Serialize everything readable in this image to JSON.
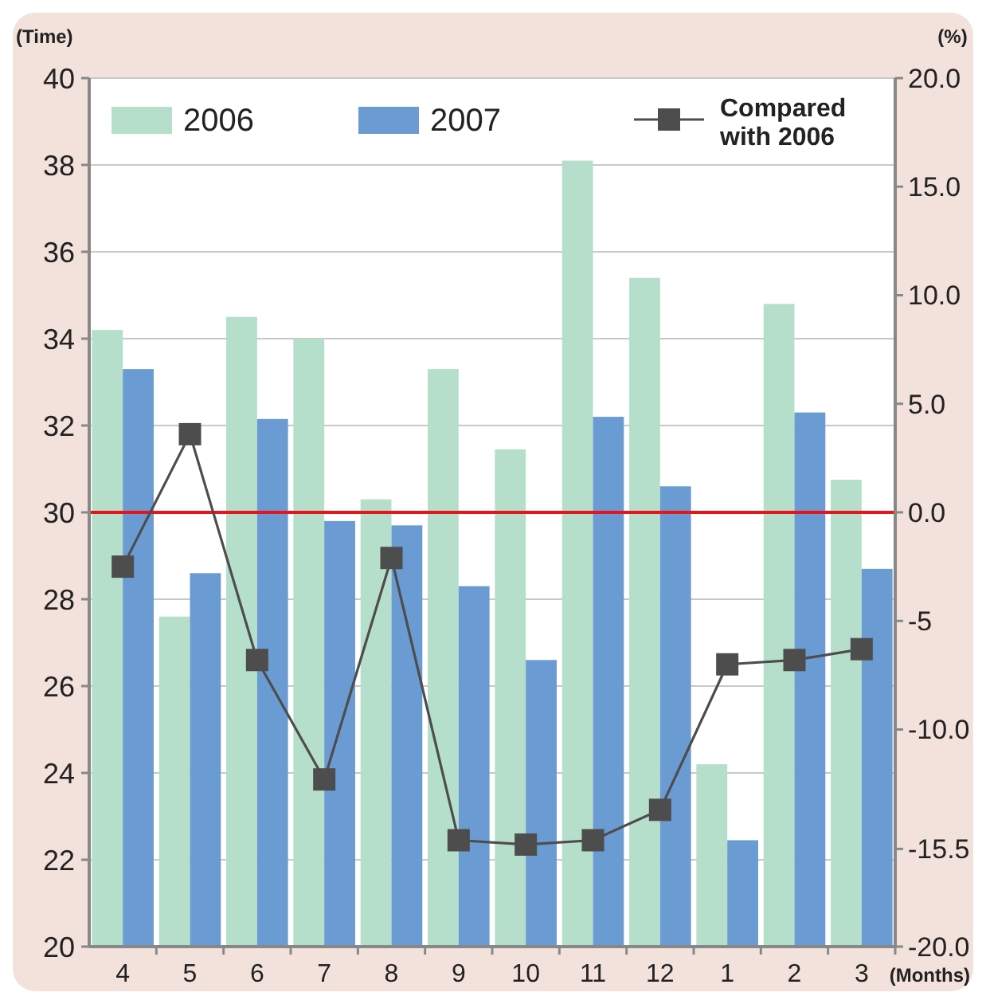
{
  "chart_data": {
    "type": "bar",
    "xlabel": "(Months)",
    "ylabel": "(Time)",
    "y2label": "(%)",
    "categories": [
      "4",
      "5",
      "6",
      "7",
      "8",
      "9",
      "10",
      "11",
      "12",
      "1",
      "2",
      "3"
    ],
    "series": [
      {
        "name": "2006",
        "color": "#b5dfcb",
        "values": [
          34.2,
          27.6,
          34.5,
          34.0,
          30.3,
          33.3,
          31.45,
          38.1,
          35.4,
          24.2,
          34.8,
          30.75
        ]
      },
      {
        "name": "2007",
        "color": "#6a9bd2",
        "values": [
          33.3,
          28.6,
          32.15,
          29.8,
          29.7,
          28.3,
          26.6,
          32.2,
          30.6,
          22.45,
          32.3,
          28.7
        ]
      },
      {
        "name": "Compared with 2006",
        "type": "line",
        "axis": "y2",
        "color": "#4d4d4d",
        "marker": "square",
        "values": [
          -2.5,
          3.6,
          -6.8,
          -12.3,
          -2.1,
          -15.1,
          -15.3,
          -15.1,
          -13.7,
          -7.0,
          -6.8,
          -6.3
        ]
      }
    ],
    "ylim": [
      20,
      40
    ],
    "yticks": [
      20,
      22,
      24,
      26,
      28,
      30,
      32,
      34,
      36,
      38,
      40
    ],
    "y2lim": [
      -20,
      20
    ],
    "y2ticks": [
      {
        "value": -20,
        "label": "-20.0"
      },
      {
        "value": -15.5,
        "label": "-15.5"
      },
      {
        "value": -10,
        "label": "-10.0"
      },
      -5,
      {
        "value": 0,
        "label": "0.0"
      },
      {
        "value": 5,
        "label": "5.0"
      },
      {
        "value": 10,
        "label": "10.0"
      },
      {
        "value": 15,
        "label": "15.0"
      },
      {
        "value": 20,
        "label": "20.0"
      }
    ],
    "ref_lines": [
      {
        "axis": "y",
        "value": 30,
        "color": "#e8141c"
      }
    ],
    "grid": "y",
    "legend": "top"
  }
}
